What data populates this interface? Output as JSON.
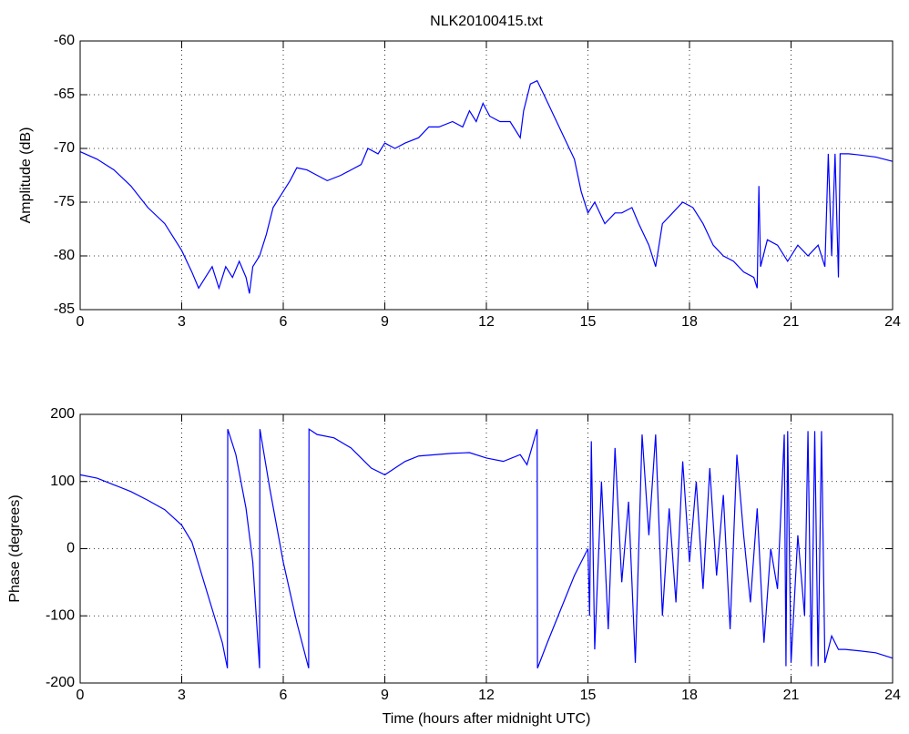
{
  "chart_data": [
    {
      "type": "line",
      "title": "NLK20100415.txt",
      "ylabel": "Amplitude (dB)",
      "grid": true,
      "xlim": [
        0,
        24
      ],
      "xticks": [
        0,
        3,
        6,
        9,
        12,
        15,
        18,
        21,
        24
      ],
      "ylim": [
        -85,
        -60
      ],
      "yticks": [
        -85,
        -80,
        -75,
        -70,
        -65,
        -60
      ],
      "series": [
        {
          "color": "#0000ff",
          "x": [
            0,
            0.5,
            1,
            1.5,
            2,
            2.5,
            3,
            3.3,
            3.5,
            3.7,
            3.9,
            4.1,
            4.3,
            4.5,
            4.7,
            4.9,
            5.0,
            5.1,
            5.3,
            5.5,
            5.7,
            6.0,
            6.2,
            6.4,
            6.7,
            7.0,
            7.3,
            7.7,
            8.0,
            8.3,
            8.5,
            8.8,
            9.0,
            9.3,
            9.6,
            10.0,
            10.3,
            10.6,
            11.0,
            11.3,
            11.5,
            11.7,
            11.9,
            12.1,
            12.4,
            12.7,
            13.0,
            13.1,
            13.3,
            13.5,
            13.7,
            14.0,
            14.3,
            14.6,
            14.8,
            15.0,
            15.2,
            15.5,
            15.8,
            16.0,
            16.3,
            16.5,
            16.8,
            17.0,
            17.2,
            17.5,
            17.8,
            18.1,
            18.4,
            18.7,
            19.0,
            19.3,
            19.6,
            19.9,
            20.0,
            20.05,
            20.1,
            20.3,
            20.6,
            20.9,
            21.2,
            21.5,
            21.8,
            22.0,
            22.1,
            22.2,
            22.3,
            22.4,
            22.45,
            22.7,
            23.0,
            23.5,
            24
          ],
          "values": [
            -70.3,
            -71,
            -72,
            -73.5,
            -75.5,
            -77,
            -79.5,
            -81.5,
            -83,
            -82,
            -81,
            -83,
            -81,
            -82,
            -80.5,
            -82,
            -83.5,
            -81,
            -80,
            -78,
            -75.5,
            -74,
            -73,
            -71.8,
            -72,
            -72.5,
            -73,
            -72.5,
            -72,
            -71.5,
            -70,
            -70.5,
            -69.5,
            -70,
            -69.5,
            -69,
            -68,
            -68,
            -67.5,
            -68,
            -66.5,
            -67.5,
            -65.8,
            -67,
            -67.5,
            -67.5,
            -69,
            -66.5,
            -64,
            -63.7,
            -65,
            -67,
            -69,
            -71,
            -74,
            -76,
            -75,
            -77,
            -76,
            -76,
            -75.5,
            -77,
            -79,
            -81,
            -77,
            -76,
            -75,
            -75.5,
            -77,
            -79,
            -80,
            -80.5,
            -81.5,
            -82,
            -83,
            -73.5,
            -81,
            -78.5,
            -79,
            -80.5,
            -79,
            -80,
            -79,
            -81,
            -70.5,
            -80,
            -70.5,
            -82,
            -70.5,
            -70.5,
            -70.6,
            -70.8,
            -71.2
          ]
        }
      ]
    },
    {
      "type": "line",
      "xlabel": "Time (hours after midnight UTC)",
      "ylabel": "Phase (degrees)",
      "grid": true,
      "xlim": [
        0,
        24
      ],
      "xticks": [
        0,
        3,
        6,
        9,
        12,
        15,
        18,
        21,
        24
      ],
      "ylim": [
        -200,
        200
      ],
      "yticks": [
        -200,
        -100,
        0,
        100,
        200
      ],
      "series": [
        {
          "color": "#0000ff",
          "x": [
            0,
            0.5,
            1,
            1.5,
            2,
            2.5,
            3,
            3.3,
            3.6,
            3.9,
            4.2,
            4.35,
            4.36,
            4.6,
            4.9,
            5.1,
            5.3,
            5.31,
            5.6,
            6.0,
            6.4,
            6.75,
            6.76,
            7.0,
            7.5,
            8.0,
            8.3,
            8.6,
            9.0,
            9.3,
            9.6,
            10.0,
            10.5,
            11.0,
            11.5,
            12.0,
            12.5,
            13.0,
            13.2,
            13.5,
            13.51,
            13.8,
            14.2,
            14.6,
            15.0,
            15.05,
            15.1,
            15.2,
            15.4,
            15.6,
            15.8,
            16.0,
            16.2,
            16.4,
            16.6,
            16.8,
            17.0,
            17.2,
            17.4,
            17.6,
            17.8,
            18.0,
            18.2,
            18.4,
            18.6,
            18.8,
            19.0,
            19.2,
            19.4,
            19.6,
            19.8,
            20.0,
            20.2,
            20.4,
            20.6,
            20.8,
            20.85,
            20.9,
            21.0,
            21.2,
            21.4,
            21.5,
            21.6,
            21.7,
            21.8,
            21.9,
            22.0,
            22.2,
            22.4,
            22.6,
            23,
            23.5,
            24
          ],
          "values": [
            110,
            105,
            95,
            85,
            72,
            58,
            35,
            10,
            -40,
            -90,
            -140,
            -178,
            178,
            140,
            60,
            -20,
            -178,
            178,
            90,
            -20,
            -110,
            -178,
            178,
            170,
            165,
            150,
            135,
            120,
            110,
            120,
            130,
            138,
            140,
            142,
            143,
            135,
            130,
            140,
            125,
            178,
            -178,
            -140,
            -90,
            -40,
            0,
            -100,
            160,
            -150,
            100,
            -120,
            150,
            -50,
            70,
            -170,
            170,
            20,
            170,
            -100,
            60,
            -80,
            130,
            -20,
            100,
            -60,
            120,
            -40,
            80,
            -120,
            140,
            20,
            -80,
            60,
            -140,
            0,
            -60,
            170,
            -175,
            175,
            -170,
            20,
            -100,
            175,
            -175,
            175,
            -175,
            175,
            -170,
            -130,
            -150,
            -150,
            -152,
            -155,
            -163
          ]
        }
      ]
    }
  ]
}
